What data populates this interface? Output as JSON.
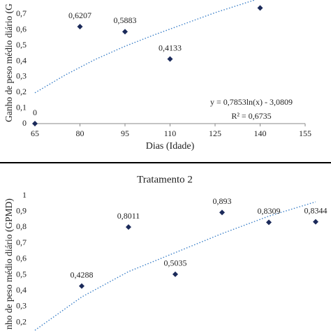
{
  "chart_data": [
    {
      "type": "scatter",
      "color": "#1b2a5a",
      "trend_color": "#3a7fc8",
      "x": [
        65,
        80,
        95,
        110,
        140
      ],
      "values": [
        0,
        0.6207,
        0.5883,
        0.4133,
        0.74
      ],
      "value_labels": [
        "0",
        "0,6207",
        "0,5883",
        "0,4133",
        null
      ],
      "trendline": {
        "x": [
          65,
          75,
          85,
          95,
          105,
          115,
          125,
          138
        ],
        "values": [
          0.197,
          0.31,
          0.41,
          0.495,
          0.57,
          0.64,
          0.71,
          0.79
        ]
      },
      "xlim": [
        65,
        155
      ],
      "ylim": [
        0,
        0.8
      ],
      "xticks": [
        65,
        80,
        95,
        110,
        125,
        140,
        155
      ],
      "yticks": [
        {
          "value": 0,
          "label": "0"
        },
        {
          "value": 0.1,
          "label": "0,1"
        },
        {
          "value": 0.2,
          "label": "0,2"
        },
        {
          "value": 0.3,
          "label": "0,3"
        },
        {
          "value": 0.4,
          "label": "0,4"
        },
        {
          "value": 0.5,
          "label": "0,5"
        },
        {
          "value": 0.6,
          "label": "0,6"
        },
        {
          "value": 0.7,
          "label": "0,7"
        }
      ],
      "xlabel": "Dias (Idade)",
      "ylabel": "Ganho de peso médio diário (G",
      "annotations": [
        "y = 0,7853ln(x) - 3,0809",
        "R² = 0,6735"
      ]
    },
    {
      "type": "scatter",
      "title": "Tratamento 2",
      "color": "#1b2a5a",
      "trend_color": "#3a7fc8",
      "x": [
        80,
        95,
        110,
        125,
        140,
        155
      ],
      "values": [
        0.4288,
        0.8011,
        0.5035,
        0.893,
        0.8309,
        0.8344
      ],
      "value_labels": [
        "0,4288",
        "0,8011",
        "0,5035",
        "0,893",
        "0,8309",
        "0,8344"
      ],
      "trendline": {
        "x": [
          65,
          80,
          95,
          110,
          125,
          140,
          155
        ],
        "values": [
          0.15,
          0.36,
          0.52,
          0.64,
          0.76,
          0.87,
          0.96
        ]
      },
      "xlim": [
        65,
        155
      ],
      "ylim": [
        0,
        1
      ],
      "yticks": [
        {
          "value": 0.2,
          "label": "0,2"
        },
        {
          "value": 0.3,
          "label": "0,3"
        },
        {
          "value": 0.4,
          "label": "0,4"
        },
        {
          "value": 0.5,
          "label": "0,5"
        },
        {
          "value": 0.6,
          "label": "0,6"
        },
        {
          "value": 0.7,
          "label": "0,7"
        },
        {
          "value": 0.8,
          "label": "0,8"
        },
        {
          "value": 0.9,
          "label": "0,9"
        },
        {
          "value": 1,
          "label": "1"
        }
      ],
      "ylabel": "nho de peso médio diário (GPMD)"
    }
  ]
}
